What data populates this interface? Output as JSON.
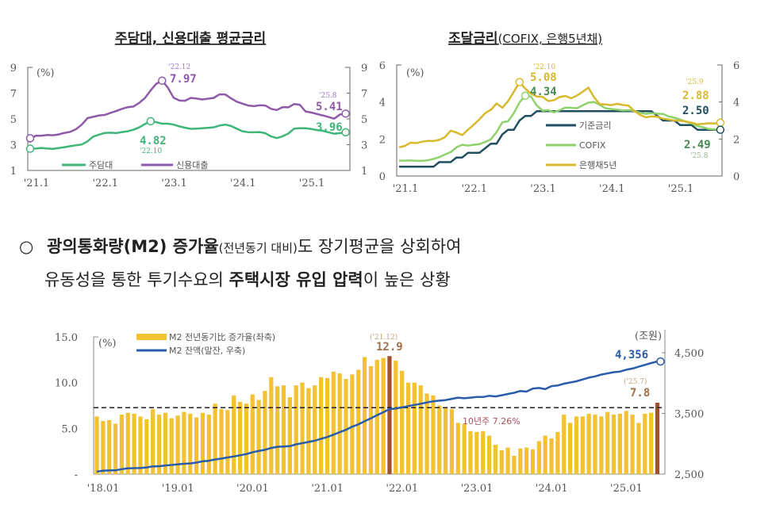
{
  "chart_data": [
    {
      "type": "line",
      "title": "주담대, 신용대출 평균금리",
      "unit": "(%)",
      "ylim": [
        1,
        9
      ],
      "yticks": [
        "9",
        "7",
        "5",
        "3",
        "1"
      ],
      "xticks": [
        "'21.1",
        "'22.1",
        "'23.1",
        "'24.1",
        "'25.1"
      ],
      "x_start": "2021.01",
      "x_end": "2025.08",
      "series": [
        {
          "name": "주담대",
          "color": "#3fb57a",
          "values": [
            2.69,
            2.7,
            2.75,
            2.7,
            2.68,
            2.74,
            2.81,
            2.88,
            2.96,
            3.01,
            3.26,
            3.63,
            3.78,
            3.91,
            3.93,
            3.9,
            3.98,
            4.04,
            4.16,
            4.34,
            4.6,
            4.82,
            4.74,
            4.63,
            4.63,
            4.56,
            4.42,
            4.32,
            4.23,
            4.24,
            4.28,
            4.31,
            4.35,
            4.48,
            4.56,
            4.45,
            4.24,
            4.04,
            3.97,
            3.96,
            3.98,
            3.89,
            3.64,
            3.51,
            3.65,
            3.86,
            4.24,
            4.28,
            4.28,
            4.22,
            4.13,
            4.08,
            3.96,
            3.85,
            3.9,
            3.96
          ]
        },
        {
          "name": "신용대출",
          "color": "#8e5aa8",
          "values": [
            3.5,
            3.69,
            3.7,
            3.76,
            3.73,
            3.8,
            3.92,
            4.0,
            4.2,
            4.56,
            5.06,
            5.16,
            5.27,
            5.31,
            5.47,
            5.61,
            5.78,
            5.91,
            5.96,
            6.24,
            6.62,
            7.21,
            7.73,
            7.97,
            7.43,
            6.65,
            6.43,
            6.41,
            6.63,
            6.58,
            6.51,
            6.57,
            6.63,
            6.9,
            6.9,
            6.6,
            6.34,
            6.19,
            6.04,
            5.99,
            6.06,
            6.04,
            5.78,
            5.69,
            5.92,
            5.9,
            6.15,
            6.1,
            5.58,
            5.5,
            5.38,
            5.27,
            5.15,
            5.02,
            5.34,
            5.41
          ]
        }
      ],
      "annotations": [
        {
          "series": "신용대출",
          "date": "'22.12",
          "value": "7.97"
        },
        {
          "series": "주담대",
          "date": "'22.10",
          "value": "4.82"
        },
        {
          "series": "신용대출",
          "date": "'25.8",
          "value": "5.41"
        },
        {
          "series": "주담대",
          "date": "",
          "value": "3.96"
        }
      ]
    },
    {
      "type": "line",
      "title": "조달금리",
      "title_suffix": "(COFIX, 은행5년채)",
      "unit": "(%)",
      "ylim": [
        0,
        6
      ],
      "yticks": [
        "6",
        "4",
        "2",
        "0"
      ],
      "xticks": [
        "'21.1",
        "'22.1",
        "'23.1",
        "'24.1",
        "'25.1"
      ],
      "x_start": "2021.01",
      "x_end": "2025.09",
      "series": [
        {
          "name": "기준금리",
          "color": "#1f4e5f",
          "values": [
            0.5,
            0.5,
            0.5,
            0.5,
            0.5,
            0.5,
            0.5,
            0.75,
            0.75,
            0.75,
            1.0,
            1.0,
            1.25,
            1.25,
            1.25,
            1.5,
            1.75,
            1.75,
            2.25,
            2.5,
            2.5,
            3.0,
            3.25,
            3.25,
            3.5,
            3.5,
            3.5,
            3.5,
            3.5,
            3.5,
            3.5,
            3.5,
            3.5,
            3.5,
            3.5,
            3.5,
            3.5,
            3.5,
            3.5,
            3.5,
            3.5,
            3.5,
            3.5,
            3.5,
            3.5,
            3.25,
            3.0,
            3.0,
            3.0,
            2.75,
            2.75,
            2.75,
            2.5,
            2.5,
            2.5,
            2.5,
            2.5
          ]
        },
        {
          "name": "COFIX",
          "color": "#8fd16b",
          "values": [
            0.83,
            0.83,
            0.84,
            0.82,
            0.82,
            0.85,
            0.92,
            1.02,
            1.16,
            1.29,
            1.55,
            1.69,
            1.64,
            1.69,
            1.72,
            1.84,
            1.98,
            2.38,
            2.9,
            2.96,
            3.4,
            3.98,
            4.34,
            4.29,
            3.82,
            3.53,
            3.56,
            3.44,
            3.56,
            3.7,
            3.69,
            3.66,
            3.82,
            3.97,
            4.0,
            3.84,
            3.66,
            3.62,
            3.59,
            3.54,
            3.56,
            3.52,
            3.42,
            3.36,
            3.4,
            3.37,
            3.35,
            3.22,
            3.15,
            3.05,
            2.93,
            2.84,
            2.7,
            2.63,
            2.54,
            2.52,
            2.49
          ]
        },
        {
          "name": "은행채5년",
          "color": "#d9b92c",
          "values": [
            1.55,
            1.62,
            1.8,
            1.78,
            1.85,
            1.9,
            1.89,
            1.95,
            2.1,
            2.45,
            2.35,
            2.21,
            2.5,
            2.77,
            3.06,
            3.4,
            3.58,
            3.92,
            3.69,
            4.05,
            4.55,
            5.08,
            4.72,
            4.45,
            4.3,
            4.28,
            4.05,
            4.1,
            4.27,
            4.33,
            4.2,
            4.35,
            4.55,
            4.78,
            4.25,
            3.88,
            3.87,
            3.83,
            3.9,
            3.84,
            3.8,
            3.52,
            3.3,
            3.17,
            3.22,
            3.2,
            3.1,
            3.05,
            3.0,
            2.99,
            2.95,
            2.88,
            2.8,
            2.82,
            2.85,
            2.84,
            2.88
          ]
        }
      ],
      "annotations": [
        {
          "series": "은행채5년",
          "date": "'22.10",
          "value": "5.08"
        },
        {
          "series": "COFIX",
          "date": "",
          "value": "4.34"
        },
        {
          "series": "은행채5년",
          "date": "'25.9",
          "value": "2.88"
        },
        {
          "series": "기준금리",
          "date": "",
          "value": "2.50"
        },
        {
          "series": "COFIX",
          "date": "'25.8",
          "value": "2.49"
        }
      ]
    },
    {
      "type": "bar+line",
      "unit_left": "(%)",
      "unit_right": "(조원)",
      "ylim_left": [
        0,
        15
      ],
      "ylim_right": [
        2500,
        4500
      ],
      "yticks_left": [
        "15.0",
        "10.0",
        "5.0",
        "-"
      ],
      "yticks_right": [
        "4,500",
        "3,500",
        "2,500"
      ],
      "xticks": [
        "'18.01",
        "'19.01",
        "'20.01",
        "'21.01",
        "'22.01",
        "'23.01",
        "'24.01",
        "'25.01"
      ],
      "x_start": "2018.01",
      "x_end": "2025.07",
      "series": [
        {
          "name": "M2 전년동기比 증가율(좌축)",
          "color": "#f2c230",
          "highlight_color": "#a0522d",
          "values": [
            6.3,
            5.8,
            5.9,
            5.5,
            6.5,
            6.7,
            6.6,
            6.3,
            6.0,
            7.1,
            6.5,
            6.7,
            6.1,
            6.4,
            6.8,
            6.6,
            6.2,
            6.7,
            6.5,
            7.7,
            7.1,
            7.0,
            8.6,
            7.9,
            7.7,
            8.7,
            8.1,
            9.1,
            10.6,
            9.6,
            9.7,
            8.4,
            9.7,
            10.0,
            9.4,
            9.7,
            10.6,
            10.5,
            11.2,
            11.0,
            10.4,
            10.9,
            11.4,
            12.8,
            11.8,
            12.5,
            12.7,
            12.9,
            12.4,
            11.3,
            10.0,
            10.0,
            9.7,
            8.8,
            8.6,
            7.5,
            7.3,
            7.1,
            5.6,
            5.5,
            4.7,
            4.6,
            4.7,
            4.2,
            3.2,
            2.6,
            2.9,
            2.0,
            2.8,
            2.9,
            2.7,
            3.6,
            4.2,
            3.9,
            4.6,
            6.5,
            5.6,
            6.3,
            6.3,
            6.6,
            6.5,
            6.3,
            6.8,
            6.5,
            6.6,
            6.9,
            6.5,
            5.6,
            6.6,
            6.7,
            7.8
          ]
        },
        {
          "name": "M2 잔액(말잔, 우축)",
          "color": "#2a5caa",
          "values": [
            2540,
            2555,
            2560,
            2562,
            2580,
            2595,
            2598,
            2600,
            2610,
            2625,
            2630,
            2640,
            2650,
            2660,
            2670,
            2675,
            2690,
            2710,
            2720,
            2740,
            2755,
            2775,
            2790,
            2810,
            2830,
            2860,
            2880,
            2900,
            2930,
            2950,
            2955,
            2960,
            2990,
            3010,
            3030,
            3050,
            3080,
            3110,
            3150,
            3190,
            3230,
            3280,
            3320,
            3370,
            3420,
            3470,
            3520,
            3570,
            3580,
            3600,
            3620,
            3640,
            3660,
            3680,
            3700,
            3710,
            3720,
            3740,
            3760,
            3750,
            3760,
            3770,
            3770,
            3790,
            3780,
            3800,
            3820,
            3840,
            3870,
            3860,
            3910,
            3920,
            3900,
            3950,
            3960,
            3990,
            4010,
            4030,
            4060,
            4090,
            4110,
            4140,
            4160,
            4180,
            4190,
            4220,
            4240,
            4270,
            4300,
            4330,
            4356
          ]
        }
      ],
      "reference_line": {
        "value": 7.26,
        "label": "10년주 7.26%"
      },
      "annotations": [
        {
          "date": "('21.12)",
          "value": "12.9"
        },
        {
          "date": "('25.7)",
          "value": "7.8"
        },
        {
          "date": "",
          "value": "4,356"
        }
      ]
    }
  ],
  "text": {
    "bullet": "○",
    "line1_a": "광의통화량(M2) 증가율",
    "line1_b": "(전년동기 대비)",
    "line1_c": "도 장기평균을 상회하여",
    "line2_a": "유동성을 통한 투기수요의 ",
    "line2_b": "주택시장 유입 압력",
    "line2_c": "이 높은 상황"
  }
}
